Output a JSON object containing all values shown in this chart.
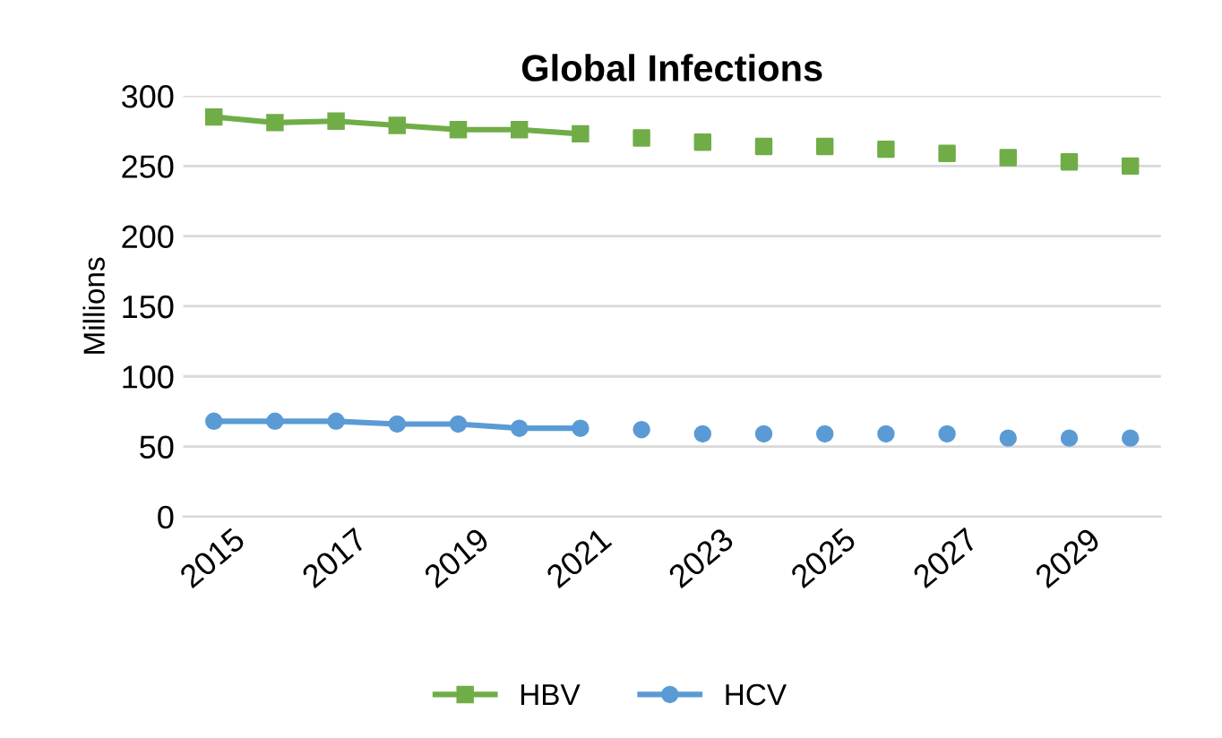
{
  "chart_data": {
    "type": "line",
    "title": "Global Infections",
    "ylabel": "Millions",
    "categories": [
      "2015",
      null,
      "2017",
      null,
      "2019",
      null,
      "2021",
      null,
      "2023",
      null,
      "2025",
      null,
      "2027",
      null,
      "2029",
      null
    ],
    "series": [
      {
        "name": "HBV",
        "color": "#70ad47",
        "marker": "square",
        "values": [
          285,
          281,
          282,
          279,
          276,
          276,
          273,
          null,
          null,
          null,
          null,
          null,
          null,
          null,
          null,
          null
        ]
      },
      {
        "type": "scatter",
        "color": "#70ad47",
        "marker": "square",
        "values": [
          null,
          null,
          null,
          null,
          null,
          null,
          null,
          270,
          267,
          264,
          264,
          262,
          259,
          256,
          253,
          250
        ]
      },
      {
        "name": "HCV",
        "color": "#5b9bd5",
        "marker": "circle",
        "values": [
          68,
          68,
          68,
          66,
          66,
          63,
          63,
          null,
          null,
          null,
          null,
          null,
          null,
          null,
          null,
          null
        ]
      },
      {
        "type": "scatter",
        "color": "#5b9bd5",
        "marker": "circle",
        "values": [
          null,
          null,
          null,
          null,
          null,
          null,
          null,
          62,
          59,
          59,
          59,
          59,
          59,
          56,
          56,
          56
        ]
      }
    ],
    "ylim": [
      0,
      300
    ],
    "yticks": [
      0,
      50,
      100,
      150,
      200,
      250,
      300
    ],
    "grid": "y",
    "legend": "bottom"
  }
}
